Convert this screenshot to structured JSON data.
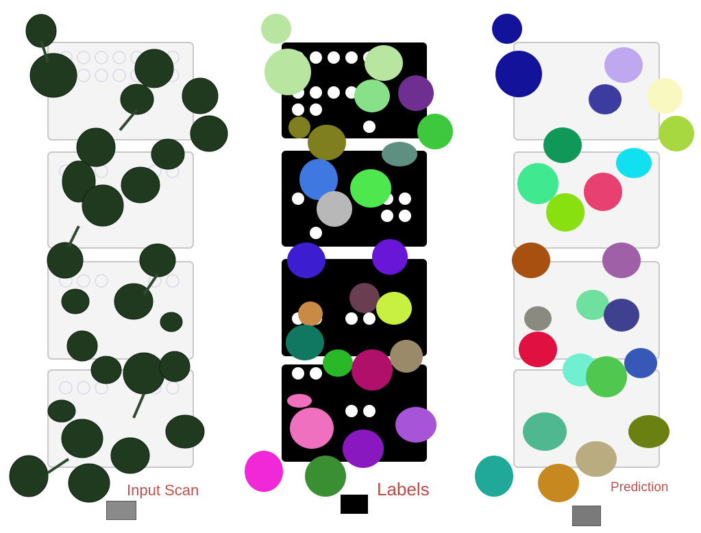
{
  "captions": {
    "input_scan": "Input Scan",
    "labels": "Labels",
    "prediction": "Prediction"
  },
  "colors": {
    "caption": "#c0504d",
    "tray_scan": "#f2f2f2",
    "tray_label": "#000000",
    "leaf_scan": "#1f3a1f"
  },
  "panels": [
    {
      "id": "input-scan",
      "name": "Input Scan"
    },
    {
      "id": "labels",
      "name": "Labels"
    },
    {
      "id": "prediction",
      "name": "Prediction"
    }
  ]
}
